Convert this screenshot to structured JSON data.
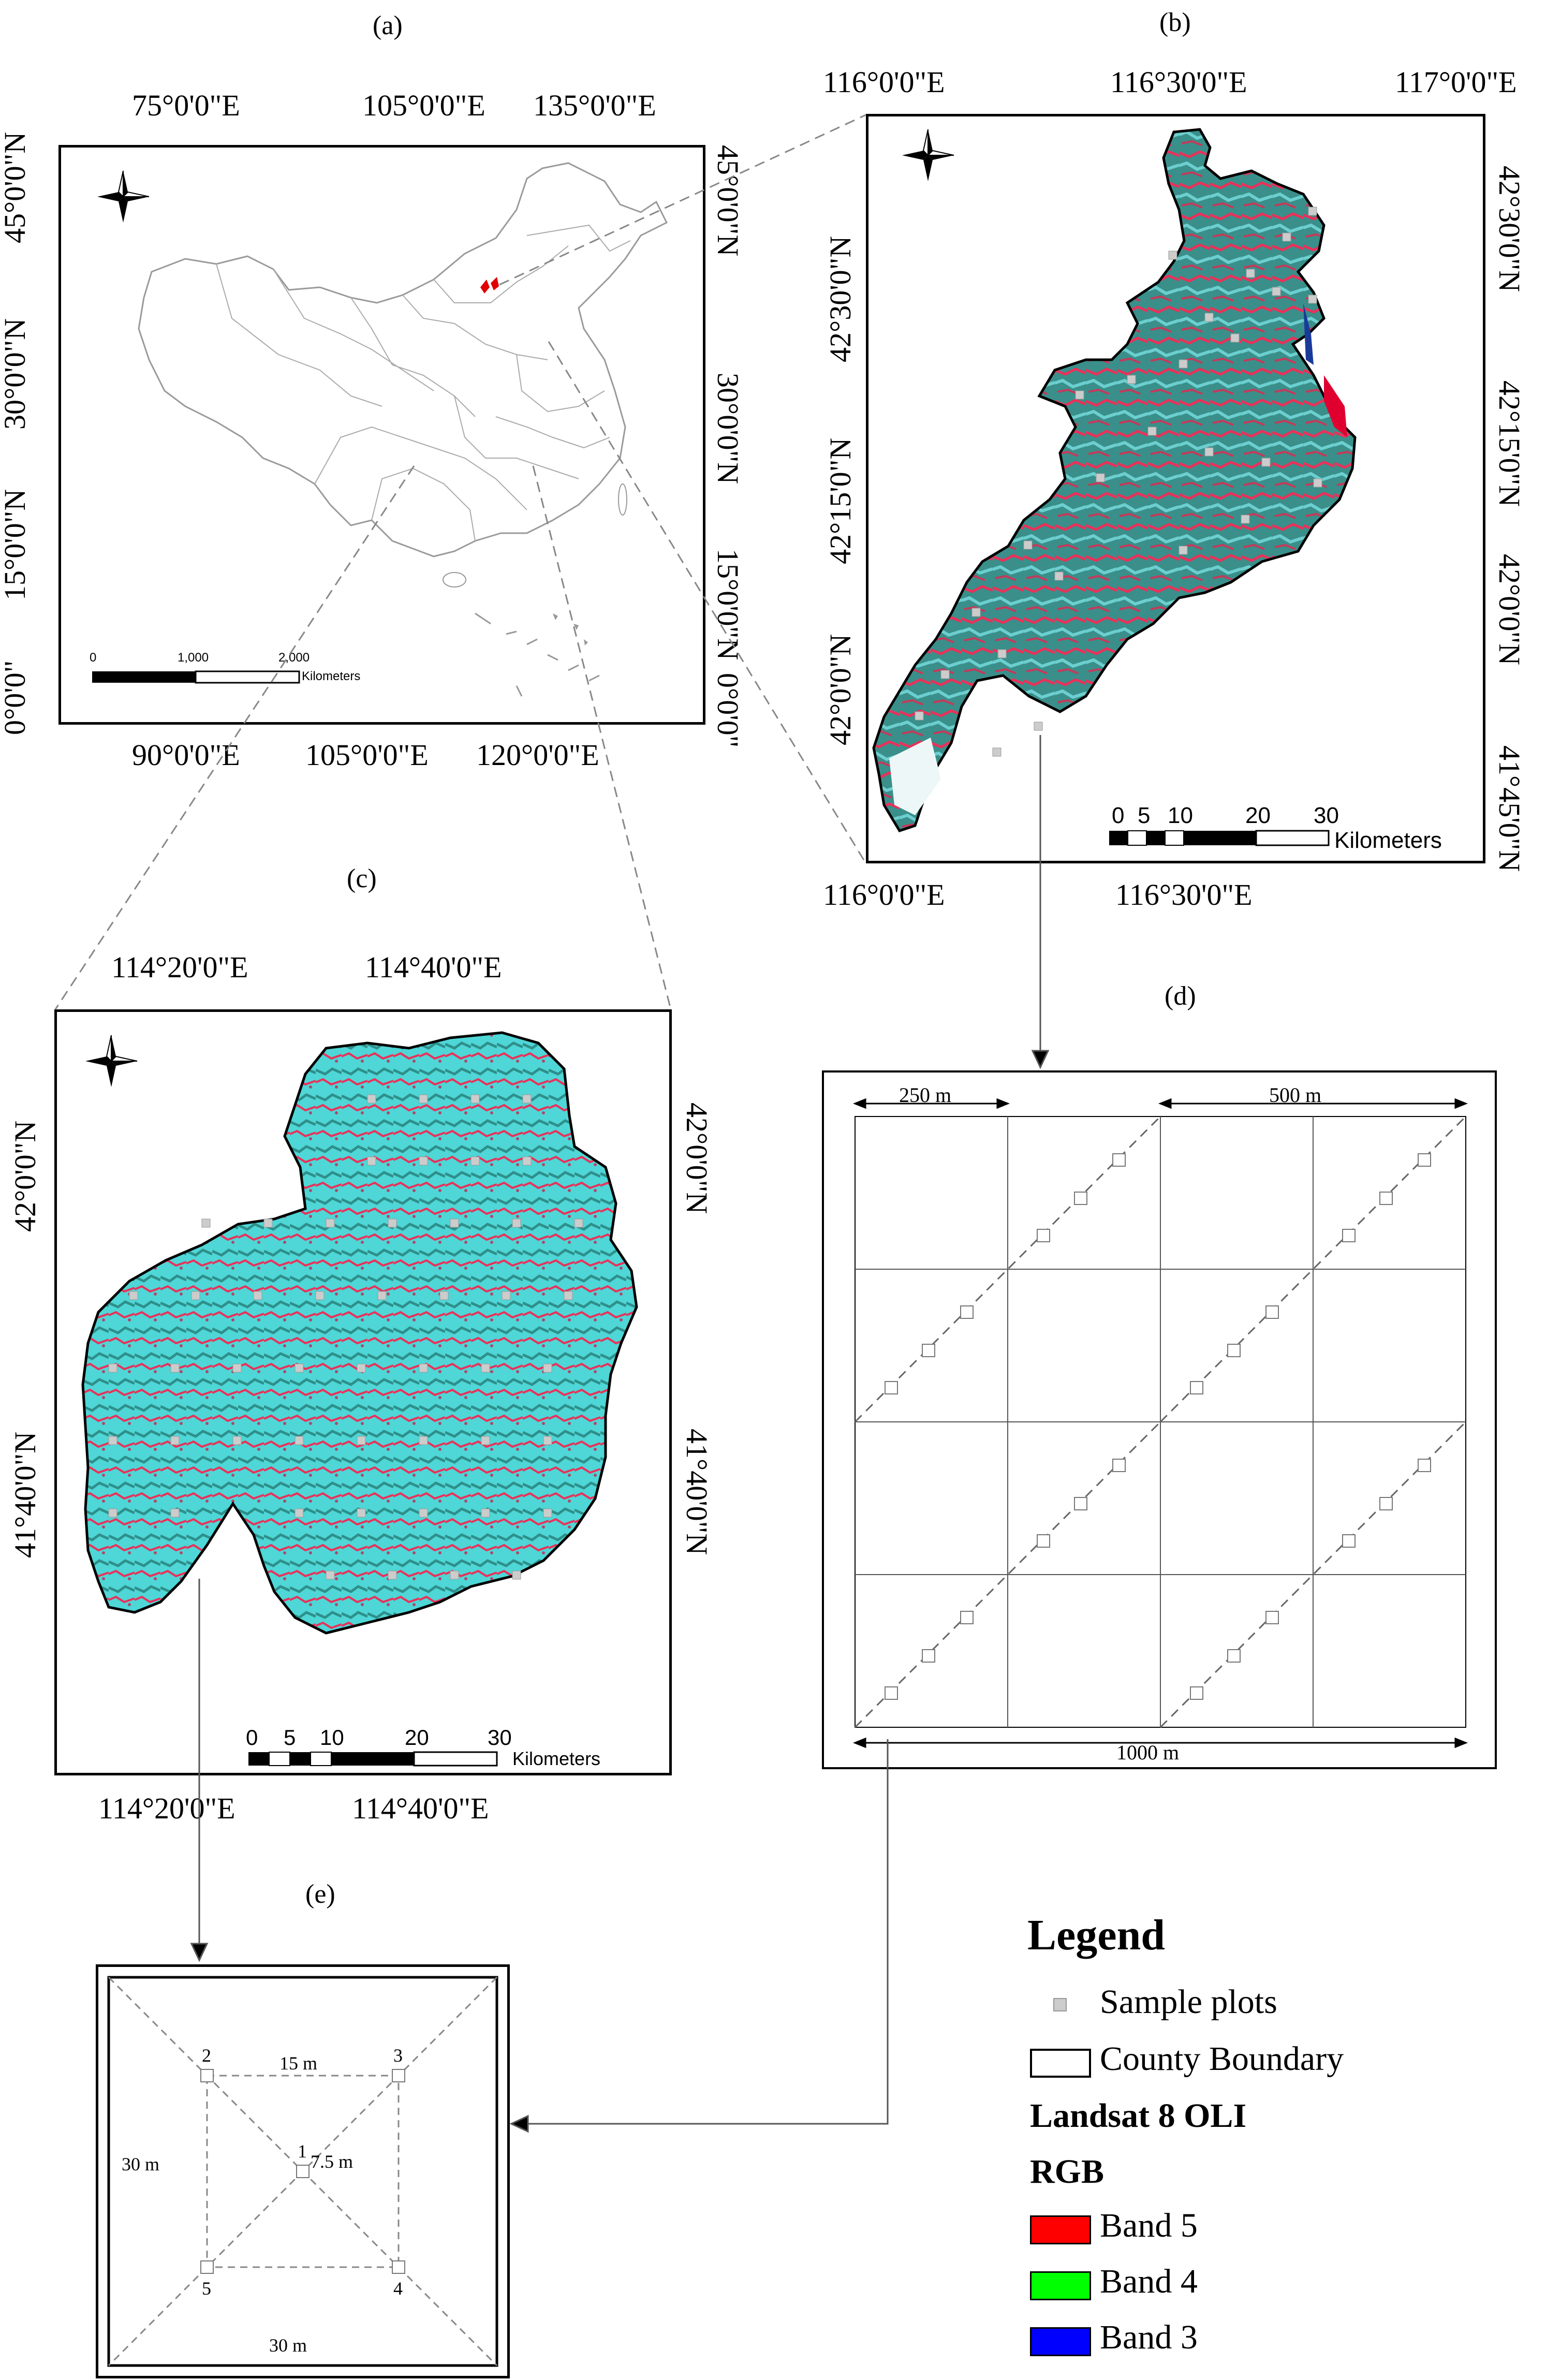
{
  "panels": {
    "a": {
      "label": "(a)",
      "top_ticks": [
        "75°0'0\"E",
        "105°0'0\"E",
        "135°0'0\"E"
      ],
      "bottom_ticks": [
        "90°0'0\"E",
        "105°0'0\"E",
        "120°0'0\"E"
      ],
      "left_ticks": [
        "45°0'0\"N",
        "30°0'0\"N",
        "15°0'0\"N",
        "0°0'0\""
      ],
      "right_ticks": [
        "45°0'0\"N",
        "30°0'0\"N",
        "15°0'0\"N",
        "0°0'0\""
      ],
      "scale": {
        "labels": [
          "0",
          "1,000",
          "2,000"
        ],
        "unit": "Kilometers"
      }
    },
    "b": {
      "label": "(b)",
      "top_ticks": [
        "116°0'0\"E",
        "116°30'0\"E",
        "117°0'0\"E"
      ],
      "bottom_ticks": [
        "116°0'0\"E",
        "116°30'0\"E"
      ],
      "left_ticks": [
        "42°30'0\"N",
        "42°15'0\"N",
        "42°0'0\"N"
      ],
      "right_ticks": [
        "42°30'0\"N",
        "42°15'0\"N",
        "42°0'0\"N",
        "41°45'0\"N"
      ],
      "scale": {
        "labels": [
          "0",
          "5",
          "10",
          "20",
          "30"
        ],
        "unit": "Kilometers"
      }
    },
    "c": {
      "label": "(c)",
      "top_ticks": [
        "114°20'0\"E",
        "114°40'0\"E"
      ],
      "bottom_ticks": [
        "114°20'0\"E",
        "114°40'0\"E"
      ],
      "left_ticks": [
        "42°0'0\"N",
        "41°40'0\"N"
      ],
      "right_ticks": [
        "42°0'0\"N",
        "41°40'0\"N"
      ],
      "scale": {
        "labels": [
          "0",
          "5",
          "10",
          "20",
          "30"
        ],
        "unit": "Kilometers"
      }
    },
    "d": {
      "label": "(d)",
      "dims": {
        "small": "250 m",
        "medium": "500 m",
        "large": "1000 m"
      }
    },
    "e": {
      "label": "(e)",
      "dims": {
        "inner": "15 m",
        "outer_left": "30 m",
        "outer_bottom": "30 m",
        "half": "7.5 m"
      },
      "plot_numbers": [
        "1",
        "2",
        "3",
        "4",
        "5"
      ]
    }
  },
  "legend": {
    "title": "Legend",
    "sample_plots": "Sample plots",
    "county_boundary": "County Boundary",
    "sensor": "Landsat 8 OLI",
    "composite": "RGB",
    "bands": [
      {
        "label": "Band 5",
        "color": "#ff0000"
      },
      {
        "label": "Band 4",
        "color": "#00ff00"
      },
      {
        "label": "Band 3",
        "color": "#0000ff"
      }
    ]
  },
  "colors": {
    "vegetation_red": "#e8325a",
    "cyan": "#4fd6d6",
    "teal": "#2e8f8a",
    "sample_plot_marker": "#cccccc"
  }
}
